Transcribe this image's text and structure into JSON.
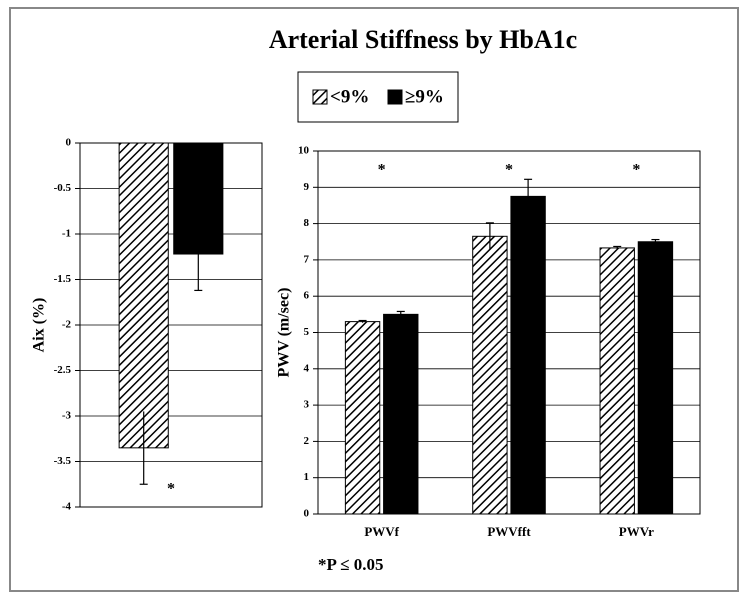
{
  "title": "Arterial Stiffness by HbA1c",
  "footnote": "*P ≤ 0.05",
  "chart_data": [
    {
      "type": "bar",
      "y_label": "Aix (%)",
      "categories": [
        null
      ],
      "series": [
        {
          "name": "<9%",
          "color": "#000000",
          "pattern": "hatch",
          "values": [
            -3.35
          ],
          "errors": [
            0.4
          ]
        },
        {
          "name": "≥9%",
          "color": "#000000",
          "values": [
            -1.22
          ],
          "errors": [
            0.4
          ]
        }
      ],
      "annotations": [
        "*"
      ],
      "ylim": [
        -4,
        0
      ],
      "yticks": [
        0,
        -0.5,
        -1,
        -1.5,
        -2,
        -2.5,
        -3,
        -3.5,
        -4
      ],
      "grid": true
    },
    {
      "type": "bar",
      "y_label": "PWV (m/sec)",
      "categories": [
        "PWVf",
        "PWVfft",
        "PWVr"
      ],
      "series": [
        {
          "name": "<9%",
          "color": "#000000",
          "pattern": "hatch",
          "values": [
            5.3,
            7.65,
            7.33
          ],
          "errors": [
            0.03,
            0.37,
            0.04
          ]
        },
        {
          "name": "≥9%",
          "color": "#000000",
          "values": [
            5.5,
            8.75,
            7.5
          ],
          "errors": [
            0.08,
            0.47,
            0.06
          ]
        }
      ],
      "annotations": [
        "*",
        "*",
        "*"
      ],
      "ylim": [
        0,
        10
      ],
      "yticks": [
        0,
        1,
        2,
        3,
        4,
        5,
        6,
        7,
        8,
        9,
        10
      ],
      "grid": true
    }
  ]
}
